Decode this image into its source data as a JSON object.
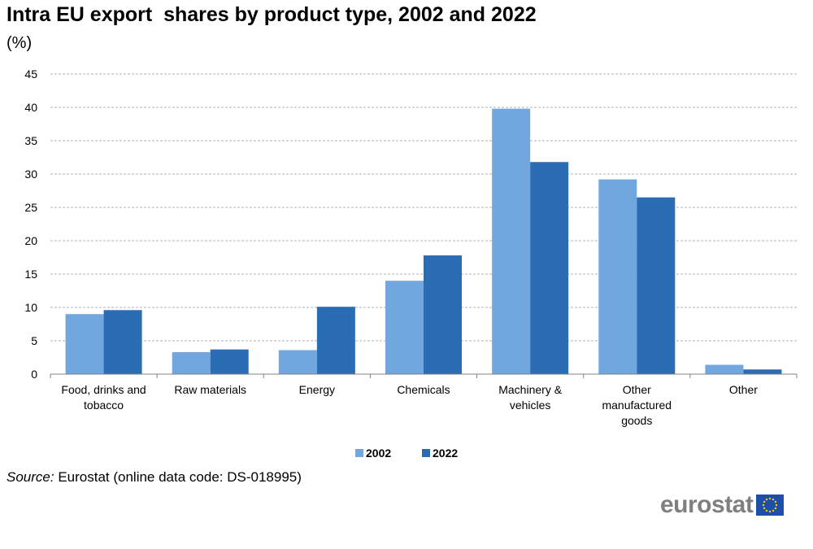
{
  "title": "Intra EU export  shares by product type, 2002 and 2022",
  "subtitle": "(%)",
  "source_label": "Source:",
  "source_text": " Eurostat (online data code: DS-018995)",
  "logo_text": "eurostat",
  "colors": {
    "series_2002": "#71a7de",
    "series_2022": "#2a6db5",
    "grid": "#b0b0b0",
    "axis": "#808080",
    "flag": "#1f4ea8",
    "stars": "#f7d100"
  },
  "chart_data": {
    "type": "bar",
    "title": "Intra EU export  shares by product type, 2002 and 2022",
    "ylabel": "(%)",
    "xlabel": "",
    "ylim": [
      0,
      45
    ],
    "yticks": [
      0,
      5,
      10,
      15,
      20,
      25,
      30,
      35,
      40,
      45
    ],
    "grid": true,
    "legend_position": "bottom",
    "categories": [
      [
        "Food, drinks and",
        "tobacco"
      ],
      [
        "Raw materials"
      ],
      [
        "Energy"
      ],
      [
        "Chemicals"
      ],
      [
        "Machinery &",
        "vehicles"
      ],
      [
        "Other",
        "manufactured",
        "goods"
      ],
      [
        "Other"
      ]
    ],
    "series": [
      {
        "name": "2002",
        "values": [
          9.0,
          3.3,
          3.6,
          14.0,
          39.8,
          29.2,
          1.4
        ]
      },
      {
        "name": "2022",
        "values": [
          9.6,
          3.7,
          10.1,
          17.8,
          31.8,
          26.5,
          0.7
        ]
      }
    ]
  }
}
